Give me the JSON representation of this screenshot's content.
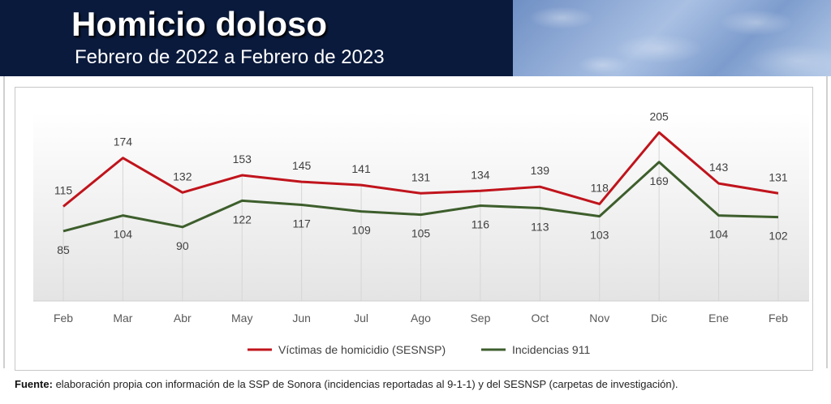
{
  "header": {
    "title": "Homicio doloso",
    "subtitle": "Febrero de 2022 a Febrero de 2023"
  },
  "footer": {
    "label": "Fuente:",
    "text": " elaboración propia con información de la SSP de Sonora (incidencias reportadas al 9-1-1) y del SESNSP (carpetas de investigación)."
  },
  "colors": {
    "header_bg": "#0a1a3c",
    "victimas": "#c0141c",
    "incidencias": "#3d5e2c"
  },
  "chart_data": {
    "type": "line",
    "categories": [
      "Feb",
      "Mar",
      "Abr",
      "May",
      "Jun",
      "Jul",
      "Ago",
      "Sep",
      "Oct",
      "Nov",
      "Dic",
      "Ene",
      "Feb"
    ],
    "series": [
      {
        "name": "Víctimas de homicidio (SESNSP)",
        "color": "#c0141c",
        "values": [
          115,
          174,
          132,
          153,
          145,
          141,
          131,
          134,
          139,
          118,
          205,
          143,
          131
        ]
      },
      {
        "name": "Incidencias 911",
        "color": "#3d5e2c",
        "values": [
          85,
          104,
          90,
          122,
          117,
          109,
          105,
          116,
          113,
          103,
          169,
          104,
          102
        ]
      }
    ],
    "ylim": [
      0,
      230
    ],
    "legend": "bottom",
    "grid": false
  }
}
